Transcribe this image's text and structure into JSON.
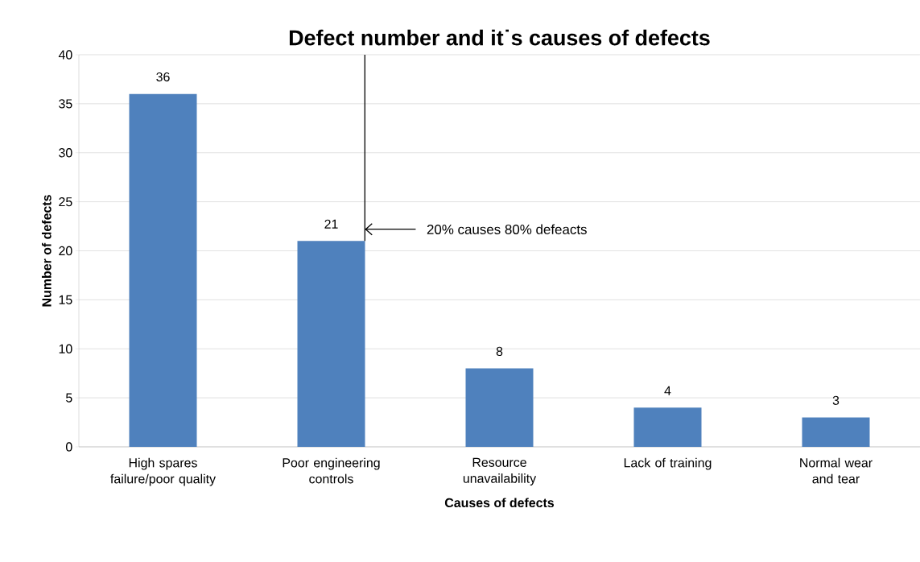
{
  "chart_data": {
    "type": "bar",
    "title": "Defect number and it˙s causes of defects",
    "xlabel": "Causes of defects",
    "ylabel": "Number of defects",
    "categories": [
      "High spares failure/poor quality",
      "Poor engineering controls",
      "Resource unavailability",
      "Lack of training",
      "Normal wear and tear"
    ],
    "values": [
      36,
      21,
      8,
      4,
      3
    ],
    "color": "#4f81bd",
    "ylim": [
      0,
      40
    ],
    "yticks": [
      0,
      5,
      10,
      15,
      20,
      25,
      30,
      35,
      40
    ],
    "grid": "y",
    "data_labels": true,
    "annotations": [
      "20% causes  80% defeacts"
    ]
  }
}
